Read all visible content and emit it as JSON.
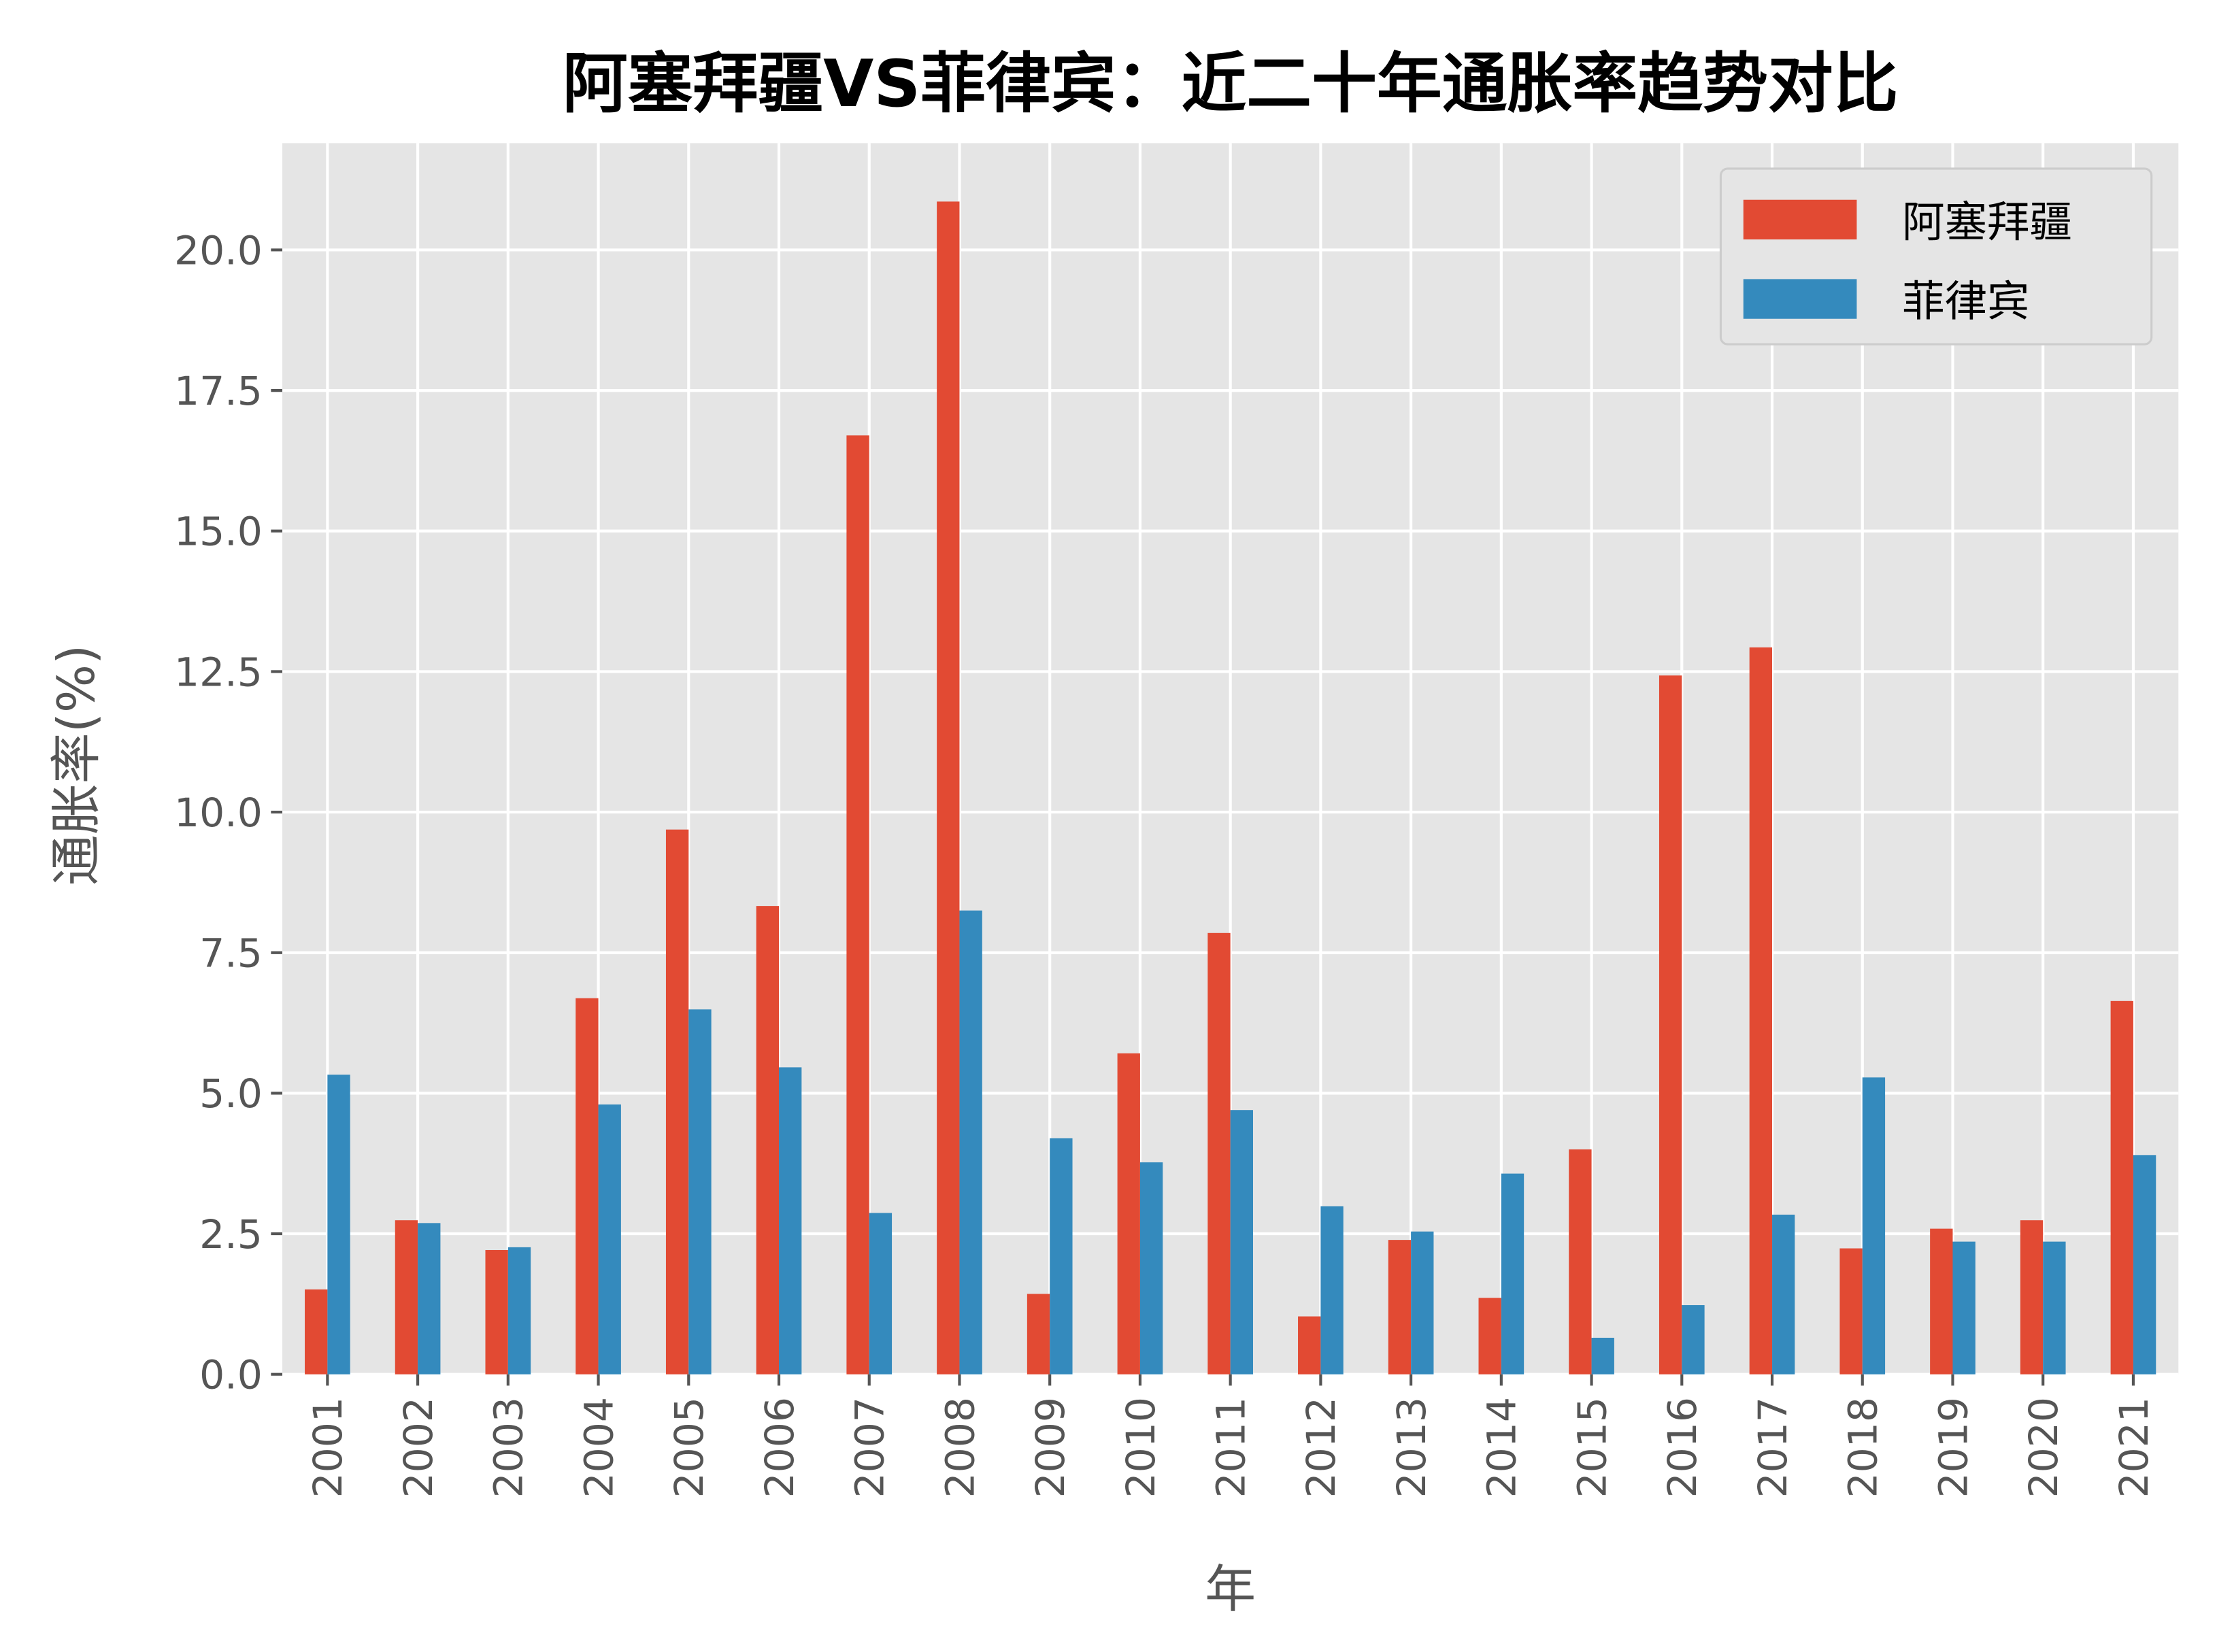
{
  "chart_data": {
    "type": "bar",
    "title": "阿塞拜疆VS菲律宾：近二十年通胀率趋势对比",
    "xlabel": "年",
    "ylabel": "通胀率(%)",
    "categories": [
      "2001",
      "2002",
      "2003",
      "2004",
      "2005",
      "2006",
      "2007",
      "2008",
      "2009",
      "2010",
      "2011",
      "2012",
      "2013",
      "2014",
      "2015",
      "2016",
      "2017",
      "2018",
      "2019",
      "2020",
      "2021"
    ],
    "series": [
      {
        "name": "阿塞拜疆",
        "color": "#E24A33",
        "values": [
          1.51,
          2.74,
          2.21,
          6.69,
          9.69,
          8.33,
          16.7,
          20.86,
          1.43,
          5.71,
          7.85,
          1.03,
          2.39,
          1.36,
          4.0,
          12.43,
          12.93,
          2.24,
          2.59,
          2.74,
          6.64
        ]
      },
      {
        "name": "菲律宾",
        "color": "#348ABD",
        "values": [
          5.33,
          2.69,
          2.26,
          4.8,
          6.49,
          5.46,
          2.87,
          8.25,
          4.2,
          3.77,
          4.7,
          2.99,
          2.54,
          3.57,
          0.65,
          1.23,
          2.84,
          5.28,
          2.36,
          2.36,
          3.9
        ]
      }
    ],
    "yticks": [
      "0.0",
      "2.5",
      "5.0",
      "7.5",
      "10.0",
      "12.5",
      "15.0",
      "17.5",
      "20.0"
    ],
    "ylim": [
      0,
      21.9
    ],
    "grid": true,
    "legend_position": "top-right",
    "background_color": "#E5E5E5"
  }
}
